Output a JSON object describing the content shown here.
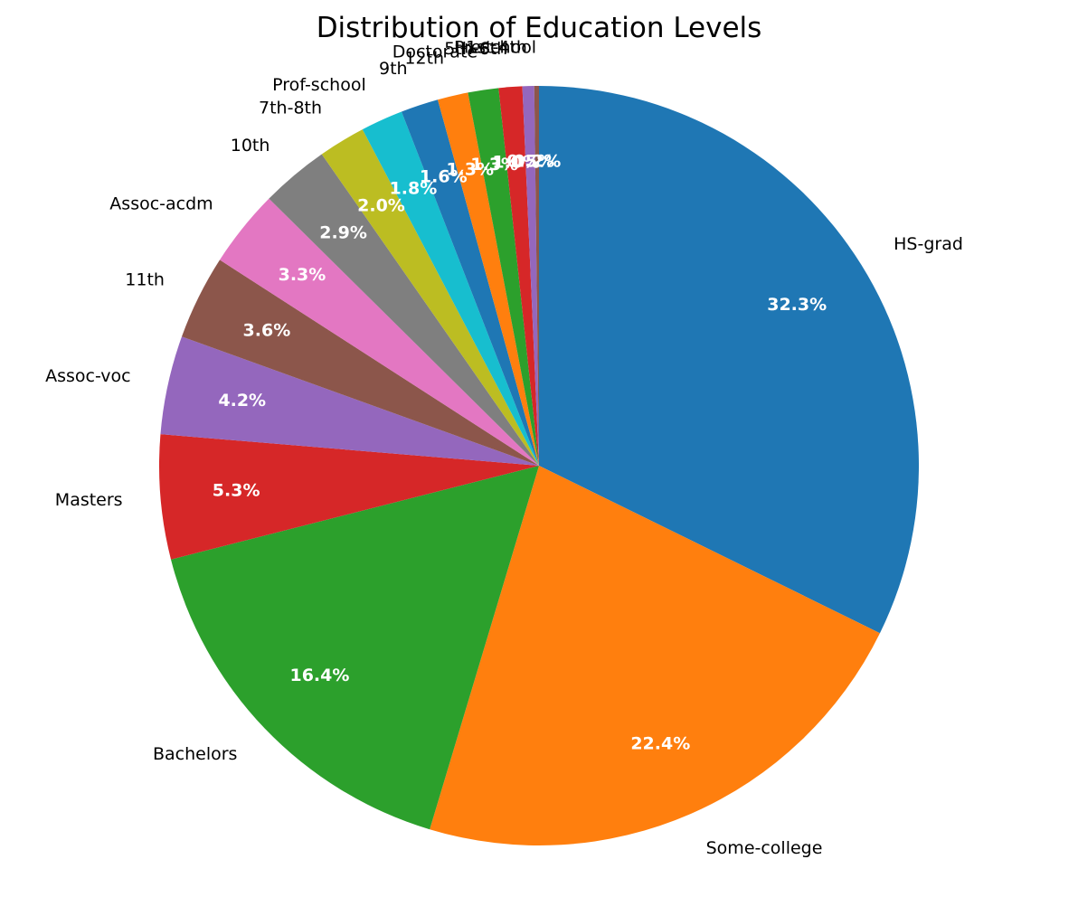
{
  "chart_data": {
    "type": "pie",
    "title": "Distribution of Education Levels",
    "start_angle_deg": 90,
    "direction": "clockwise",
    "slices": [
      {
        "label": "HS-grad",
        "value": 32.3,
        "pct_label": "32.3%",
        "color": "#1f77b4"
      },
      {
        "label": "Some-college",
        "value": 22.4,
        "pct_label": "22.4%",
        "color": "#ff7f0e"
      },
      {
        "label": "Bachelors",
        "value": 16.4,
        "pct_label": "16.4%",
        "color": "#2ca02c"
      },
      {
        "label": "Masters",
        "value": 5.3,
        "pct_label": "5.3%",
        "color": "#d62728"
      },
      {
        "label": "Assoc-voc",
        "value": 4.2,
        "pct_label": "4.2%",
        "color": "#9467bd"
      },
      {
        "label": "11th",
        "value": 3.6,
        "pct_label": "3.6%",
        "color": "#8c564b"
      },
      {
        "label": "Assoc-acdm",
        "value": 3.3,
        "pct_label": "3.3%",
        "color": "#e377c2"
      },
      {
        "label": "10th",
        "value": 2.9,
        "pct_label": "2.9%",
        "color": "#7f7f7f"
      },
      {
        "label": "7th-8th",
        "value": 2.0,
        "pct_label": "2.0%",
        "color": "#bcbd22"
      },
      {
        "label": "Prof-school",
        "value": 1.8,
        "pct_label": "1.8%",
        "color": "#17becf"
      },
      {
        "label": "9th",
        "value": 1.6,
        "pct_label": "1.6%",
        "color": "#1f77b4"
      },
      {
        "label": "12th",
        "value": 1.3,
        "pct_label": "1.3%",
        "color": "#ff7f0e"
      },
      {
        "label": "Doctorate",
        "value": 1.3,
        "pct_label": "1.3%",
        "color": "#2ca02c"
      },
      {
        "label": "5th-6th",
        "value": 1.0,
        "pct_label": "1.0%",
        "color": "#d62728"
      },
      {
        "label": "1st-4th",
        "value": 0.5,
        "pct_label": "0.5%",
        "color": "#9467bd"
      },
      {
        "label": "Preschool",
        "value": 0.2,
        "pct_label": "0.2%",
        "color": "#8c564b"
      }
    ]
  }
}
